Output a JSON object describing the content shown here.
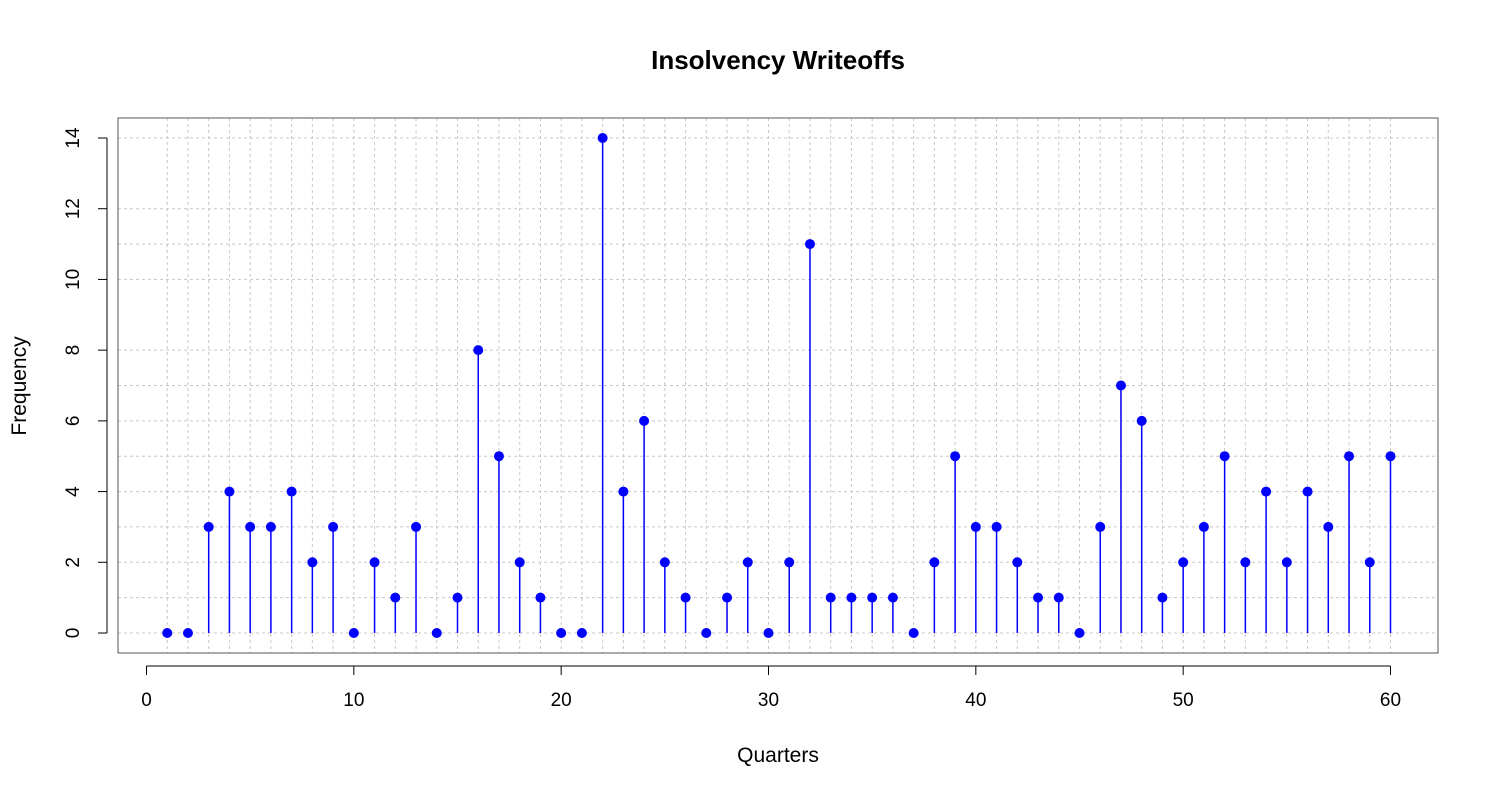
{
  "chart_data": {
    "type": "scatter",
    "style": "lollipop",
    "title": "Insolvency Writeoffs",
    "xlabel": "Quarters",
    "ylabel": "Frequency",
    "xlim": [
      0,
      60
    ],
    "ylim": [
      0,
      14
    ],
    "xticks": [
      0,
      10,
      20,
      30,
      40,
      50,
      60
    ],
    "yticks": [
      0,
      2,
      4,
      6,
      8,
      10,
      12,
      14
    ],
    "grid": true,
    "grid_extra_y": [
      1,
      3,
      5,
      7,
      11
    ],
    "series": [
      {
        "color": "#0000ff",
        "x": [
          1,
          2,
          3,
          4,
          5,
          6,
          7,
          8,
          9,
          10,
          11,
          12,
          13,
          14,
          15,
          16,
          17,
          18,
          19,
          20,
          21,
          22,
          23,
          24,
          25,
          26,
          27,
          28,
          29,
          30,
          31,
          32,
          33,
          34,
          35,
          36,
          37,
          38,
          39,
          40,
          41,
          42,
          43,
          44,
          45,
          46,
          47,
          48,
          49,
          50,
          51,
          52,
          53,
          54,
          55,
          56,
          57,
          58,
          59,
          60
        ],
        "values": [
          0,
          0,
          3,
          4,
          3,
          3,
          4,
          2,
          3,
          0,
          2,
          1,
          3,
          0,
          1,
          8,
          5,
          2,
          1,
          0,
          0,
          14,
          4,
          6,
          2,
          1,
          0,
          1,
          2,
          0,
          2,
          11,
          1,
          1,
          1,
          1,
          0,
          2,
          5,
          3,
          3,
          2,
          1,
          1,
          0,
          3,
          7,
          6,
          1,
          2,
          3,
          5,
          2,
          4,
          2,
          4,
          3,
          5,
          2,
          5
        ]
      }
    ]
  }
}
